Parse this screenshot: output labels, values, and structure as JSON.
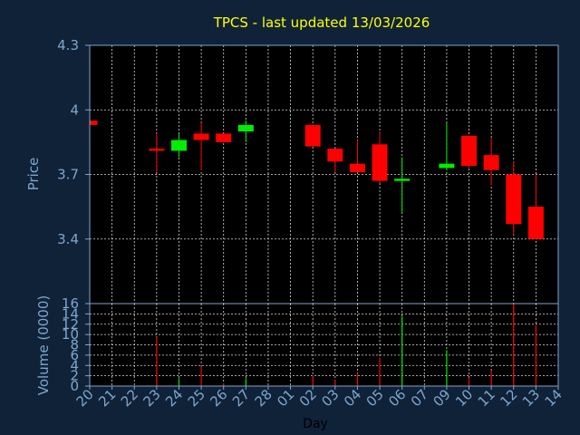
{
  "chart_data": {
    "type": "candlestick",
    "title": "TPCS - last updated 13/03/2026",
    "xlabel": "Day",
    "categories": [
      "20",
      "21",
      "22",
      "23",
      "24",
      "25",
      "26",
      "27",
      "28",
      "01",
      "02",
      "03",
      "04",
      "05",
      "06",
      "07",
      "09",
      "10",
      "11",
      "12",
      "13",
      "14"
    ],
    "price": {
      "ylabel": "Price",
      "ylim": [
        3.1,
        4.3
      ],
      "yticks": [
        "3.4",
        "3.7",
        "4",
        "4.3"
      ],
      "grid": true,
      "up_color": "#00ee00",
      "down_color": "#ff0000",
      "candles": [
        {
          "day": "20",
          "open": 3.95,
          "high": 3.95,
          "low": 3.93,
          "close": 3.93
        },
        {
          "day": "23",
          "open": 3.82,
          "high": 3.89,
          "low": 3.71,
          "close": 3.81
        },
        {
          "day": "24",
          "open": 3.81,
          "high": 3.89,
          "low": 3.78,
          "close": 3.86
        },
        {
          "day": "25",
          "open": 3.89,
          "high": 3.94,
          "low": 3.72,
          "close": 3.86
        },
        {
          "day": "26",
          "open": 3.89,
          "high": 3.89,
          "low": 3.85,
          "close": 3.85
        },
        {
          "day": "27",
          "open": 3.9,
          "high": 3.95,
          "low": 3.85,
          "close": 3.93
        },
        {
          "day": "02",
          "open": 3.93,
          "high": 3.93,
          "low": 3.83,
          "close": 3.83
        },
        {
          "day": "03",
          "open": 3.82,
          "high": 3.82,
          "low": 3.71,
          "close": 3.76
        },
        {
          "day": "04",
          "open": 3.75,
          "high": 3.86,
          "low": 3.71,
          "close": 3.71
        },
        {
          "day": "05",
          "open": 3.84,
          "high": 3.9,
          "low": 3.66,
          "close": 3.67
        },
        {
          "day": "06",
          "open": 3.67,
          "high": 3.78,
          "low": 3.52,
          "close": 3.68
        },
        {
          "day": "09",
          "open": 3.73,
          "high": 3.94,
          "low": 3.72,
          "close": 3.75
        },
        {
          "day": "10",
          "open": 3.88,
          "high": 3.88,
          "low": 3.73,
          "close": 3.74
        },
        {
          "day": "11",
          "open": 3.79,
          "high": 3.87,
          "low": 3.65,
          "close": 3.72
        },
        {
          "day": "12",
          "open": 3.7,
          "high": 3.76,
          "low": 3.42,
          "close": 3.47
        },
        {
          "day": "13",
          "open": 3.55,
          "high": 3.7,
          "low": 3.4,
          "close": 3.4
        }
      ]
    },
    "volume": {
      "ylabel": "Volume (0000)",
      "ylim": [
        0,
        16
      ],
      "yticks": [
        "0",
        "2",
        "4",
        "6",
        "8",
        "10",
        "12",
        "14",
        "16"
      ],
      "bars": [
        {
          "day": "23",
          "value": 9.5,
          "color": "#ff0000"
        },
        {
          "day": "24",
          "value": 1.5,
          "color": "#00ee00"
        },
        {
          "day": "25",
          "value": 3.8,
          "color": "#ff0000"
        },
        {
          "day": "26",
          "value": 0.5,
          "color": "#ff0000"
        },
        {
          "day": "27",
          "value": 1.5,
          "color": "#00ee00"
        },
        {
          "day": "02",
          "value": 2.0,
          "color": "#ff0000"
        },
        {
          "day": "03",
          "value": 1.2,
          "color": "#ff0000"
        },
        {
          "day": "04",
          "value": 2.5,
          "color": "#ff0000"
        },
        {
          "day": "05",
          "value": 5.5,
          "color": "#ff0000"
        },
        {
          "day": "06",
          "value": 13.5,
          "color": "#00ee00"
        },
        {
          "day": "09",
          "value": 7.0,
          "color": "#00ee00"
        },
        {
          "day": "10",
          "value": 1.5,
          "color": "#ff0000"
        },
        {
          "day": "11",
          "value": 3.0,
          "color": "#ff0000"
        },
        {
          "day": "12",
          "value": 16.0,
          "color": "#ff0000"
        },
        {
          "day": "13",
          "value": 11.8,
          "color": "#ff0000"
        }
      ]
    }
  }
}
